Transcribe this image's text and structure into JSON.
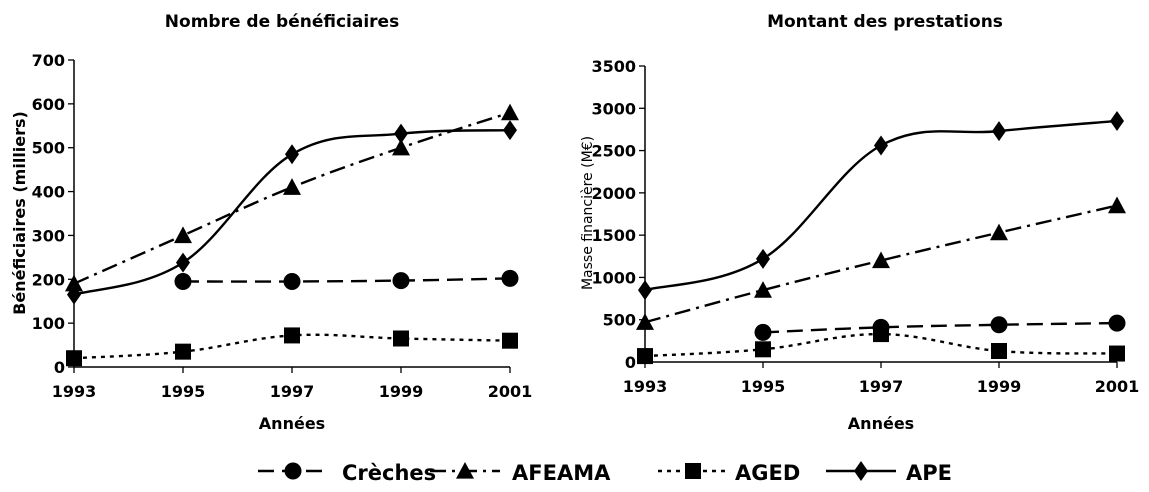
{
  "chart_data": [
    {
      "type": "line",
      "title": "Nombre de bénéficiaires",
      "xlabel": "Années",
      "ylabel": "Bénéficiaires (milliers)",
      "ylim": [
        0,
        700
      ],
      "yticks": [
        "0",
        "100",
        "200",
        "300",
        "400",
        "500",
        "600",
        "700"
      ],
      "x": [
        "1993",
        "1995",
        "1997",
        "1999",
        "2001"
      ],
      "grid": false,
      "series": [
        {
          "name": "Crèches",
          "x": [
            "1995",
            "1997",
            "1999",
            "2001"
          ],
          "values": [
            195,
            195,
            197,
            202
          ]
        },
        {
          "name": "AFEAMA",
          "x": [
            "1993",
            "1995",
            "1997",
            "1999",
            "2001"
          ],
          "values": [
            190,
            300,
            410,
            500,
            580
          ]
        },
        {
          "name": "AGED",
          "x": [
            "1993",
            "1995",
            "1997",
            "1999",
            "2001"
          ],
          "values": [
            20,
            35,
            72,
            65,
            60
          ]
        },
        {
          "name": "APE",
          "x": [
            "1993",
            "1995",
            "1997",
            "1999",
            "2001"
          ],
          "values": [
            165,
            238,
            485,
            532,
            540
          ]
        }
      ]
    },
    {
      "type": "line",
      "title": "Montant des prestations",
      "xlabel": "Années",
      "ylabel": "Masse financière (M€)",
      "ylim": [
        0,
        3500
      ],
      "yticks": [
        "0",
        "500",
        "1000",
        "1500",
        "2000",
        "2500",
        "3000",
        "3500"
      ],
      "x": [
        "1993",
        "1995",
        "1997",
        "1999",
        "2001"
      ],
      "grid": false,
      "series": [
        {
          "name": "Crèches",
          "x": [
            "1995",
            "1997",
            "1999",
            "2001"
          ],
          "values": [
            350,
            410,
            440,
            460
          ]
        },
        {
          "name": "AFEAMA",
          "x": [
            "1993",
            "1995",
            "1997",
            "1999",
            "2001"
          ],
          "values": [
            470,
            850,
            1200,
            1530,
            1850
          ]
        },
        {
          "name": "AGED",
          "x": [
            "1993",
            "1995",
            "1997",
            "1999",
            "2001"
          ],
          "values": [
            70,
            150,
            330,
            130,
            100
          ]
        },
        {
          "name": "APE",
          "x": [
            "1993",
            "1995",
            "1997",
            "1999",
            "2001"
          ],
          "values": [
            850,
            1220,
            2560,
            2730,
            2850
          ]
        }
      ]
    }
  ],
  "legend": {
    "placement": "bottom",
    "items": [
      {
        "label": "Crèches",
        "marker": "circle",
        "dash": "dashed"
      },
      {
        "label": "AFEAMA",
        "marker": "triangle",
        "dash": "dash-dot"
      },
      {
        "label": "AGED",
        "marker": "square",
        "dash": "dotted"
      },
      {
        "label": "APE",
        "marker": "diamond",
        "dash": "solid"
      }
    ]
  }
}
